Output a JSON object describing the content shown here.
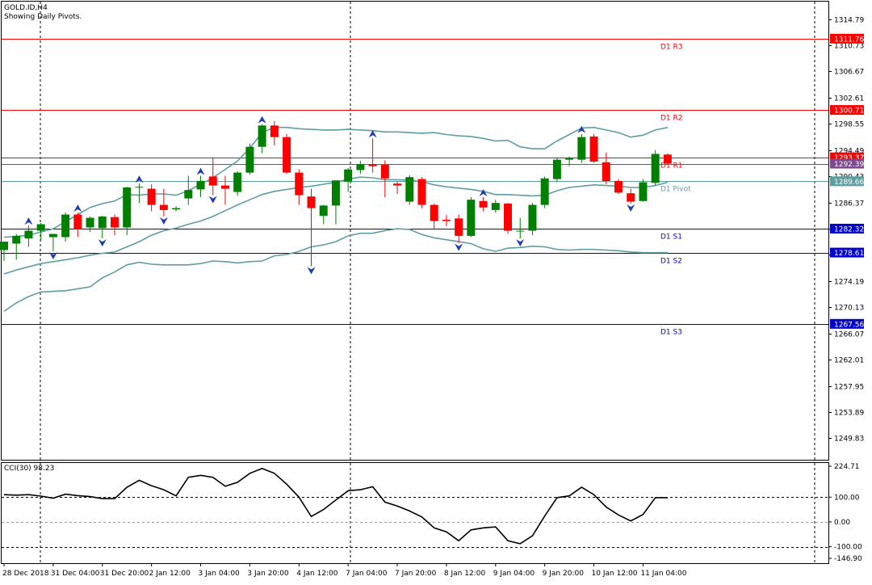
{
  "header": {
    "symbol": "GOLD.ID,H4",
    "subtitle": "Showing Daily Pivots."
  },
  "colors": {
    "bull": "#008000",
    "bear": "#ff0000",
    "band": "#5f9ea0",
    "resistance": "#ff0000",
    "support": "#0000cd",
    "pivot": "#5f9ea0",
    "arrow": "#1e3cb4",
    "grid": "#000000",
    "cci": "#000000"
  },
  "price_axis": {
    "ticks": [
      "1314.79",
      "1310.73",
      "1306.67",
      "1302.61",
      "1298.55",
      "1294.49",
      "1290.43",
      "1286.37",
      "1282.31",
      "1278.25",
      "1274.19",
      "1270.13",
      "1266.07",
      "1262.01",
      "1257.95",
      "1253.89",
      "1249.83"
    ],
    "tick_values": [
      1314.79,
      1310.73,
      1306.67,
      1302.61,
      1298.55,
      1294.49,
      1290.43,
      1286.37,
      1282.31,
      1278.25,
      1274.19,
      1270.13,
      1266.07,
      1262.01,
      1257.95,
      1253.89,
      1249.83
    ]
  },
  "time_axis": {
    "labels": [
      "28 Dec 2018",
      "31 Dec 04:00",
      "31 Dec 20:00",
      "2 Jan 12:00",
      "3 Jan 04:00",
      "3 Jan 20:00",
      "4 Jan 12:00",
      "7 Jan 04:00",
      "7 Jan 20:00",
      "8 Jan 12:00",
      "9 Jan 04:00",
      "9 Jan 20:00",
      "10 Jan 12:00",
      "11 Jan 04:00"
    ],
    "label_bar_index": [
      0,
      4,
      8,
      12,
      16,
      20,
      24,
      28,
      32,
      36,
      40,
      44,
      48,
      52
    ]
  },
  "pivots": [
    {
      "label": "D1 R3",
      "value": 1311.76,
      "price_text": "1311.76",
      "kind": "resistance"
    },
    {
      "label": "D1 R2",
      "value": 1300.71,
      "price_text": "1300.71",
      "kind": "resistance"
    },
    {
      "label": "D1 R1",
      "value": 1293.37,
      "price_text": "1293.37",
      "kind": "resistance"
    },
    {
      "label": "D1 Pivot",
      "value": 1289.66,
      "price_text": "1289.66",
      "kind": "pivot"
    },
    {
      "label": "D1 S1",
      "value": 1282.32,
      "price_text": "1282.32",
      "kind": "support"
    },
    {
      "label": "D1 S2",
      "value": 1278.61,
      "price_text": "1278.61",
      "kind": "support"
    },
    {
      "label": "D1 S3",
      "value": 1267.56,
      "price_text": "1267.56",
      "kind": "support"
    }
  ],
  "current_price": {
    "value": 1292.39,
    "price_text": "1292.39"
  },
  "chart_data": {
    "type": "candlestick",
    "title": "GOLD.ID,H4",
    "ylim": [
      1246.5,
      1317.5
    ],
    "bars": [
      {
        "o": 1279.0,
        "h": 1280.3,
        "l": 1277.3,
        "c": 1280.3
      },
      {
        "o": 1280.0,
        "h": 1281.5,
        "l": 1277.5,
        "c": 1281.2
      },
      {
        "o": 1280.8,
        "h": 1282.8,
        "l": 1279.5,
        "c": 1282.0
      },
      {
        "o": 1282.0,
        "h": 1283.2,
        "l": 1280.5,
        "c": 1283.0
      },
      {
        "o": 1281.0,
        "h": 1281.5,
        "l": 1278.8,
        "c": 1281.5
      },
      {
        "o": 1281.0,
        "h": 1284.8,
        "l": 1280.3,
        "c": 1284.5
      },
      {
        "o": 1284.5,
        "h": 1284.8,
        "l": 1281.0,
        "c": 1282.2
      },
      {
        "o": 1282.5,
        "h": 1284.2,
        "l": 1281.8,
        "c": 1284.0
      },
      {
        "o": 1282.4,
        "h": 1284.3,
        "l": 1280.8,
        "c": 1284.2
      },
      {
        "o": 1284.1,
        "h": 1284.5,
        "l": 1281.3,
        "c": 1282.5
      },
      {
        "o": 1282.5,
        "h": 1288.8,
        "l": 1281.3,
        "c": 1288.7
      },
      {
        "o": 1288.7,
        "h": 1289.3,
        "l": 1286.3,
        "c": 1288.8
      },
      {
        "o": 1288.5,
        "h": 1289.2,
        "l": 1285.0,
        "c": 1286.0
      },
      {
        "o": 1286.0,
        "h": 1288.5,
        "l": 1284.2,
        "c": 1285.2
      },
      {
        "o": 1285.3,
        "h": 1285.8,
        "l": 1285.0,
        "c": 1285.5
      },
      {
        "o": 1287.0,
        "h": 1290.5,
        "l": 1286.0,
        "c": 1288.3
      },
      {
        "o": 1288.4,
        "h": 1290.5,
        "l": 1287.2,
        "c": 1289.7
      },
      {
        "o": 1290.4,
        "h": 1293.3,
        "l": 1287.5,
        "c": 1289.0
      },
      {
        "o": 1289.0,
        "h": 1290.5,
        "l": 1286.0,
        "c": 1288.5
      },
      {
        "o": 1288.0,
        "h": 1291.2,
        "l": 1287.4,
        "c": 1291.0
      },
      {
        "o": 1291.0,
        "h": 1295.5,
        "l": 1290.7,
        "c": 1295.0
      },
      {
        "o": 1295.0,
        "h": 1298.5,
        "l": 1294.0,
        "c": 1298.3
      },
      {
        "o": 1298.3,
        "h": 1299.0,
        "l": 1295.2,
        "c": 1296.5
      },
      {
        "o": 1296.5,
        "h": 1297.0,
        "l": 1290.8,
        "c": 1291.0
      },
      {
        "o": 1291.0,
        "h": 1291.5,
        "l": 1286.0,
        "c": 1287.5
      },
      {
        "o": 1287.3,
        "h": 1288.5,
        "l": 1276.5,
        "c": 1285.5
      },
      {
        "o": 1284.3,
        "h": 1286.0,
        "l": 1283.0,
        "c": 1285.9
      },
      {
        "o": 1285.9,
        "h": 1289.8,
        "l": 1283.0,
        "c": 1289.8
      },
      {
        "o": 1289.6,
        "h": 1291.7,
        "l": 1288.0,
        "c": 1291.5
      },
      {
        "o": 1291.4,
        "h": 1292.8,
        "l": 1290.8,
        "c": 1292.3
      },
      {
        "o": 1292.3,
        "h": 1296.3,
        "l": 1291.0,
        "c": 1292.0
      },
      {
        "o": 1292.2,
        "h": 1292.9,
        "l": 1287.2,
        "c": 1290.1
      },
      {
        "o": 1289.3,
        "h": 1289.6,
        "l": 1287.7,
        "c": 1289.0
      },
      {
        "o": 1286.5,
        "h": 1290.6,
        "l": 1286.0,
        "c": 1290.3
      },
      {
        "o": 1290.0,
        "h": 1290.3,
        "l": 1285.5,
        "c": 1286.0
      },
      {
        "o": 1286.0,
        "h": 1286.2,
        "l": 1282.3,
        "c": 1283.5
      },
      {
        "o": 1283.7,
        "h": 1284.4,
        "l": 1282.7,
        "c": 1283.5
      },
      {
        "o": 1283.9,
        "h": 1284.5,
        "l": 1280.1,
        "c": 1281.2
      },
      {
        "o": 1281.2,
        "h": 1287.2,
        "l": 1281.0,
        "c": 1286.8
      },
      {
        "o": 1286.6,
        "h": 1287.2,
        "l": 1285.0,
        "c": 1285.6
      },
      {
        "o": 1285.2,
        "h": 1286.8,
        "l": 1284.8,
        "c": 1286.3
      },
      {
        "o": 1286.2,
        "h": 1286.3,
        "l": 1281.5,
        "c": 1282.0
      },
      {
        "o": 1281.9,
        "h": 1284.0,
        "l": 1280.8,
        "c": 1282.0
      },
      {
        "o": 1282.0,
        "h": 1286.3,
        "l": 1281.3,
        "c": 1286.0
      },
      {
        "o": 1286.0,
        "h": 1290.4,
        "l": 1285.5,
        "c": 1290.1
      },
      {
        "o": 1290.0,
        "h": 1293.3,
        "l": 1289.5,
        "c": 1293.0
      },
      {
        "o": 1293.0,
        "h": 1293.5,
        "l": 1292.0,
        "c": 1293.2
      },
      {
        "o": 1293.0,
        "h": 1297.0,
        "l": 1292.5,
        "c": 1296.5
      },
      {
        "o": 1296.6,
        "h": 1297.0,
        "l": 1292.5,
        "c": 1292.7
      },
      {
        "o": 1292.6,
        "h": 1294.1,
        "l": 1289.2,
        "c": 1289.7
      },
      {
        "o": 1289.7,
        "h": 1290.0,
        "l": 1287.7,
        "c": 1287.9
      },
      {
        "o": 1287.8,
        "h": 1288.5,
        "l": 1286.2,
        "c": 1286.5
      },
      {
        "o": 1286.6,
        "h": 1290.0,
        "l": 1286.5,
        "c": 1289.5
      },
      {
        "o": 1289.4,
        "h": 1294.5,
        "l": 1289.0,
        "c": 1293.9
      },
      {
        "o": 1293.8,
        "h": 1294.0,
        "l": 1292.3,
        "c": 1292.4
      }
    ],
    "bollinger": {
      "upper": [
        1281.0,
        1281.1,
        1281.3,
        1281.8,
        1282.3,
        1283.4,
        1284.5,
        1285.6,
        1286.2,
        1286.6,
        1287.6,
        1287.5,
        1287.7,
        1287.7,
        1287.5,
        1288.2,
        1289.2,
        1290.2,
        1291.5,
        1292.8,
        1294.8,
        1297.2,
        1298.0,
        1298.0,
        1297.8,
        1297.7,
        1297.6,
        1297.6,
        1297.7,
        1297.6,
        1297.5,
        1297.3,
        1297.3,
        1297.2,
        1297.1,
        1297.2,
        1296.9,
        1296.7,
        1296.6,
        1296.3,
        1295.9,
        1296.0,
        1295.0,
        1294.7,
        1294.7,
        1295.9,
        1296.9,
        1297.9,
        1298.0,
        1297.6,
        1297.2,
        1296.5,
        1296.8,
        1297.6,
        1298.0
      ],
      "middle": [
        1275.3,
        1275.9,
        1276.4,
        1276.9,
        1277.2,
        1277.5,
        1277.8,
        1278.2,
        1278.5,
        1278.7,
        1279.5,
        1280.3,
        1281.3,
        1282.0,
        1282.4,
        1283.0,
        1283.5,
        1284.2,
        1285.1,
        1286.0,
        1286.8,
        1287.6,
        1288.1,
        1288.4,
        1288.7,
        1288.9,
        1289.2,
        1289.5,
        1290.0,
        1290.3,
        1290.2,
        1289.9,
        1289.9,
        1289.8,
        1289.6,
        1289.1,
        1288.8,
        1288.6,
        1288.4,
        1288.1,
        1287.6,
        1287.6,
        1287.5,
        1287.4,
        1287.5,
        1288.2,
        1288.7,
        1288.9,
        1289.1,
        1289.0,
        1288.9,
        1288.7,
        1288.7,
        1289.0,
        1289.5
      ],
      "lower": [
        1269.5,
        1270.8,
        1271.8,
        1272.5,
        1272.6,
        1272.7,
        1273.0,
        1273.3,
        1274.7,
        1275.6,
        1276.7,
        1277.1,
        1276.8,
        1276.7,
        1276.7,
        1276.7,
        1276.9,
        1277.3,
        1277.2,
        1277.0,
        1277.2,
        1277.3,
        1278.1,
        1278.3,
        1278.8,
        1279.5,
        1279.8,
        1280.3,
        1281.2,
        1281.6,
        1281.6,
        1282.0,
        1282.3,
        1282.2,
        1281.4,
        1280.9,
        1280.6,
        1280.3,
        1280.0,
        1279.2,
        1278.8,
        1279.3,
        1279.4,
        1279.6,
        1279.5,
        1279.1,
        1279.0,
        1279.1,
        1279.1,
        1279.0,
        1278.9,
        1278.7,
        1278.6,
        1278.6,
        1278.6
      ]
    },
    "fractals": [
      {
        "i": 2,
        "dir": "up"
      },
      {
        "i": 4,
        "dir": "down"
      },
      {
        "i": 6,
        "dir": "up"
      },
      {
        "i": 8,
        "dir": "down"
      },
      {
        "i": 11,
        "dir": "up"
      },
      {
        "i": 13,
        "dir": "down"
      },
      {
        "i": 16,
        "dir": "up"
      },
      {
        "i": 17,
        "dir": "down"
      },
      {
        "i": 21,
        "dir": "up"
      },
      {
        "i": 25,
        "dir": "down"
      },
      {
        "i": 30,
        "dir": "up"
      },
      {
        "i": 37,
        "dir": "down"
      },
      {
        "i": 39,
        "dir": "up"
      },
      {
        "i": 42,
        "dir": "down"
      },
      {
        "i": 47,
        "dir": "up"
      },
      {
        "i": 51,
        "dir": "down"
      }
    ]
  },
  "cci_panel": {
    "label": "CCI(30) 98.23",
    "ticks": [
      "224.71",
      "100.00",
      "0.00",
      "-100.00",
      "-146.90"
    ],
    "tick_values": [
      224.71,
      100.0,
      0.0,
      -100.0,
      -146.9
    ],
    "ylim": [
      -146.9,
      224.71
    ],
    "values": [
      110,
      108,
      110,
      104,
      96,
      112,
      106,
      102,
      94,
      94,
      140,
      168,
      146,
      130,
      105,
      180,
      188,
      180,
      144,
      160,
      196,
      216,
      196,
      152,
      100,
      22,
      50,
      88,
      126,
      130,
      142,
      80,
      64,
      44,
      20,
      -24,
      -40,
      -76,
      -32,
      -24,
      -20,
      -76,
      -88,
      -56,
      24,
      98,
      105,
      140,
      110,
      60,
      28,
      4,
      30,
      98,
      98
    ]
  }
}
